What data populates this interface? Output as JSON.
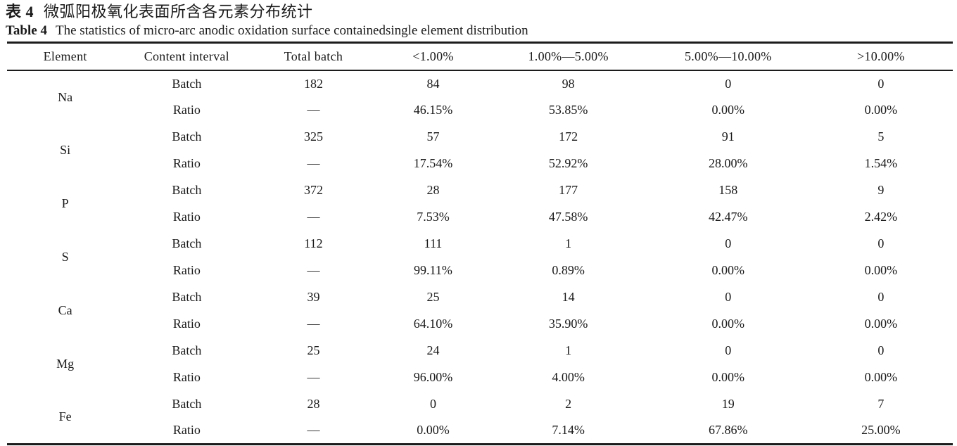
{
  "caption": {
    "cn_label": "表 4",
    "cn_text": "微弧阳极氧化表面所含各元素分布统计",
    "en_label": "Table 4",
    "en_text": "The statistics of micro-arc anodic oxidation surface containedsingle element distribution"
  },
  "table": {
    "headers": [
      "Element",
      "Content interval",
      "Total batch",
      "<1.00%",
      "1.00%—5.00%",
      "5.00%—10.00%",
      ">10.00%"
    ],
    "labels": {
      "batch": "Batch",
      "ratio": "Ratio"
    },
    "rows": [
      {
        "element": "Na",
        "batch": [
          "182",
          "84",
          "98",
          "0",
          "0"
        ],
        "ratio": [
          "—",
          "46.15%",
          "53.85%",
          "0.00%",
          "0.00%"
        ]
      },
      {
        "element": "Si",
        "batch": [
          "325",
          "57",
          "172",
          "91",
          "5"
        ],
        "ratio": [
          "—",
          "17.54%",
          "52.92%",
          "28.00%",
          "1.54%"
        ]
      },
      {
        "element": "P",
        "batch": [
          "372",
          "28",
          "177",
          "158",
          "9"
        ],
        "ratio": [
          "—",
          "7.53%",
          "47.58%",
          "42.47%",
          "2.42%"
        ]
      },
      {
        "element": "S",
        "batch": [
          "112",
          "111",
          "1",
          "0",
          "0"
        ],
        "ratio": [
          "—",
          "99.11%",
          "0.89%",
          "0.00%",
          "0.00%"
        ]
      },
      {
        "element": "Ca",
        "batch": [
          "39",
          "25",
          "14",
          "0",
          "0"
        ],
        "ratio": [
          "—",
          "64.10%",
          "35.90%",
          "0.00%",
          "0.00%"
        ]
      },
      {
        "element": "Mg",
        "batch": [
          "25",
          "24",
          "1",
          "0",
          "0"
        ],
        "ratio": [
          "—",
          "96.00%",
          "4.00%",
          "0.00%",
          "0.00%"
        ]
      },
      {
        "element": "Fe",
        "batch": [
          "28",
          "0",
          "2",
          "19",
          "7"
        ],
        "ratio": [
          "—",
          "0.00%",
          "7.14%",
          "67.86%",
          "25.00%"
        ]
      }
    ],
    "colors": {
      "text": "#1a1a1a",
      "rule": "#1c1c1c",
      "background": "#ffffff"
    }
  }
}
